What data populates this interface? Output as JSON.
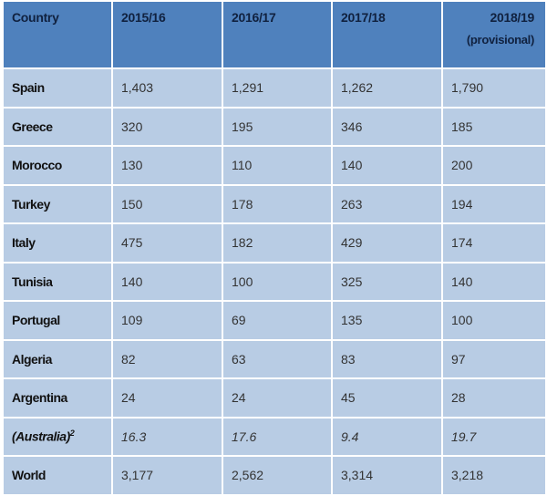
{
  "table": {
    "headers": [
      {
        "label": "Country",
        "sub": ""
      },
      {
        "label": "2015/16",
        "sub": ""
      },
      {
        "label": "2016/17",
        "sub": ""
      },
      {
        "label": "2017/18",
        "sub": ""
      },
      {
        "label": "2018/19",
        "sub": "(provisional)"
      }
    ],
    "rows": [
      {
        "country": "Spain",
        "values": [
          "1,403",
          "1,291",
          "1,262",
          "1,790"
        ]
      },
      {
        "country": "Greece",
        "values": [
          "320",
          "195",
          "346",
          "185"
        ]
      },
      {
        "country": "Morocco",
        "values": [
          "130",
          "110",
          "140",
          "200"
        ]
      },
      {
        "country": "Turkey",
        "values": [
          "150",
          "178",
          "263",
          "194"
        ]
      },
      {
        "country": "Italy",
        "values": [
          "475",
          "182",
          "429",
          "174"
        ]
      },
      {
        "country": "Tunisia",
        "values": [
          "140",
          "100",
          "325",
          "140"
        ]
      },
      {
        "country": "Portugal",
        "values": [
          "109",
          "69",
          "135",
          "100"
        ]
      },
      {
        "country": "Algeria",
        "values": [
          "82",
          "63",
          "83",
          "97"
        ]
      },
      {
        "country": "Argentina",
        "values": [
          "24",
          "24",
          "45",
          "28"
        ]
      },
      {
        "country": "(Australia)",
        "footnote": "2",
        "values": [
          "16.3",
          "17.6",
          "9.4",
          "19.7"
        ]
      },
      {
        "country": "World",
        "values": [
          "3,177",
          "2,562",
          "3,314",
          "3,218"
        ]
      }
    ]
  },
  "colors": {
    "header_bg": "#4f81bd",
    "row_bg": "#b8cce4",
    "border": "#ffffff"
  }
}
